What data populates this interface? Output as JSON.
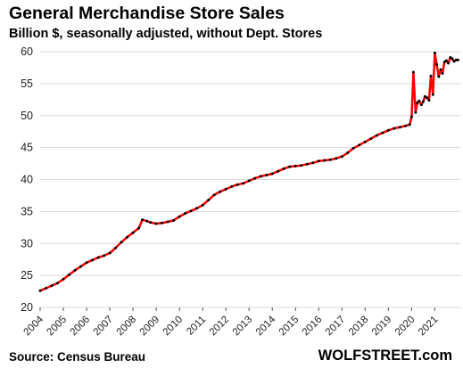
{
  "title": "General Merchandise Store Sales",
  "subtitle": "Billion $, seasonally adjusted, without Dept. Stores",
  "source": "Source: Census Bureau",
  "brand": "WOLFSTREET.com",
  "chart_data": {
    "type": "line",
    "title": "General Merchandise Store Sales",
    "subtitle": "Billion $, seasonally adjusted, without Dept. Stores",
    "xlabel": "",
    "ylabel": "",
    "xlim": [
      2004,
      2022.1
    ],
    "ylim": [
      20,
      60
    ],
    "yticks": [
      20,
      25,
      30,
      35,
      40,
      45,
      50,
      55,
      60
    ],
    "xticks": [
      "2004",
      "2005",
      "2006",
      "2007",
      "2008",
      "2009",
      "2010",
      "2011",
      "2012",
      "2013",
      "2014",
      "2015",
      "2016",
      "2017",
      "2018",
      "2019",
      "2020",
      "2021"
    ],
    "grid": true,
    "legend": "none",
    "line_color": "#ff0000",
    "marker_color": "#000000",
    "series": [
      {
        "name": "",
        "x": [
          2004.0,
          2004.25,
          2004.5,
          2004.75,
          2005.0,
          2005.25,
          2005.5,
          2005.75,
          2006.0,
          2006.25,
          2006.5,
          2006.75,
          2007.0,
          2007.25,
          2007.5,
          2007.75,
          2008.0,
          2008.25,
          2008.4,
          2008.6,
          2008.75,
          2009.0,
          2009.25,
          2009.5,
          2009.75,
          2010.0,
          2010.25,
          2010.5,
          2010.75,
          2011.0,
          2011.25,
          2011.5,
          2011.75,
          2012.0,
          2012.25,
          2012.5,
          2012.75,
          2013.0,
          2013.25,
          2013.5,
          2013.75,
          2014.0,
          2014.25,
          2014.5,
          2014.75,
          2015.0,
          2015.25,
          2015.5,
          2015.75,
          2016.0,
          2016.25,
          2016.5,
          2016.75,
          2017.0,
          2017.25,
          2017.5,
          2017.75,
          2018.0,
          2018.25,
          2018.5,
          2018.75,
          2019.0,
          2019.25,
          2019.5,
          2019.75,
          2019.92,
          2020.0,
          2020.08,
          2020.17,
          2020.25,
          2020.33,
          2020.42,
          2020.5,
          2020.58,
          2020.67,
          2020.75,
          2020.83,
          2020.92,
          2021.0,
          2021.08,
          2021.17,
          2021.25,
          2021.33,
          2021.42,
          2021.5,
          2021.58,
          2021.67,
          2021.75,
          2021.83,
          2021.92,
          2022.0
        ],
        "y": [
          22.6,
          23.0,
          23.4,
          23.8,
          24.4,
          25.1,
          25.8,
          26.4,
          27.0,
          27.4,
          27.8,
          28.1,
          28.5,
          29.3,
          30.2,
          31.0,
          31.7,
          32.4,
          33.7,
          33.5,
          33.3,
          33.1,
          33.2,
          33.4,
          33.6,
          34.2,
          34.7,
          35.1,
          35.5,
          36.0,
          36.8,
          37.6,
          38.1,
          38.5,
          38.9,
          39.2,
          39.4,
          39.8,
          40.2,
          40.5,
          40.7,
          40.9,
          41.3,
          41.7,
          42.0,
          42.1,
          42.2,
          42.4,
          42.6,
          42.9,
          43.0,
          43.1,
          43.3,
          43.6,
          44.2,
          44.9,
          45.4,
          45.9,
          46.4,
          46.9,
          47.3,
          47.7,
          48.0,
          48.2,
          48.4,
          48.6,
          49.8,
          56.8,
          50.5,
          52.0,
          52.3,
          51.7,
          52.2,
          53.0,
          52.8,
          52.4,
          56.2,
          53.3,
          59.8,
          58.0,
          56.1,
          57.2,
          56.6,
          58.4,
          58.6,
          58.2,
          59.1,
          58.9,
          58.5,
          58.7,
          58.7
        ]
      }
    ]
  }
}
